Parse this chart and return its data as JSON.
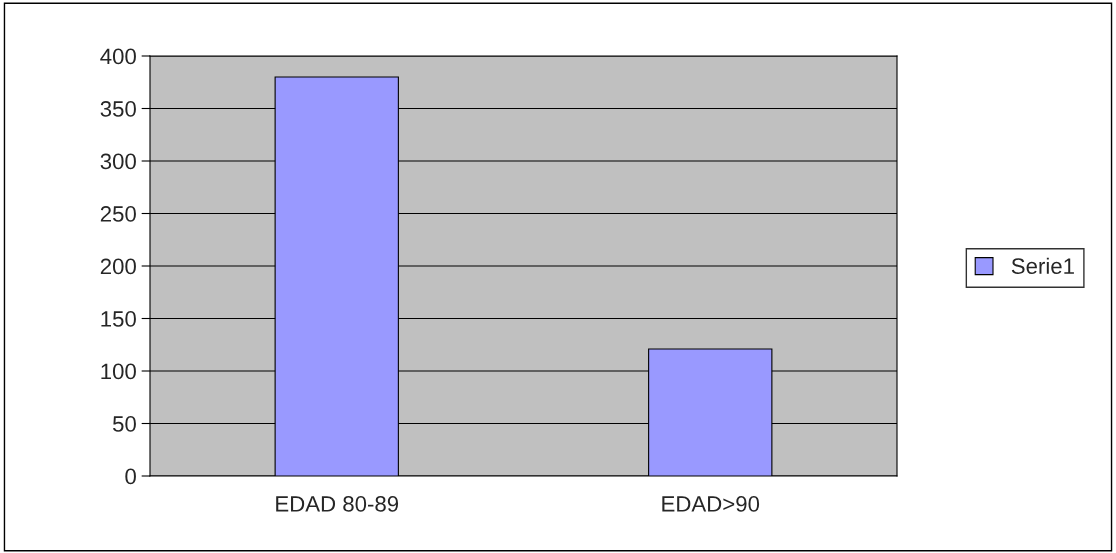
{
  "chart_data": {
    "type": "bar",
    "categories": [
      "EDAD 80-89",
      "EDAD>90"
    ],
    "series": [
      {
        "name": "Serie1",
        "color": "#9999ff",
        "values": [
          380,
          121
        ]
      }
    ],
    "ylim": [
      0,
      400
    ],
    "yticks": [
      0,
      50,
      100,
      150,
      200,
      250,
      300,
      350,
      400
    ],
    "grid": "y",
    "legend": "right"
  }
}
